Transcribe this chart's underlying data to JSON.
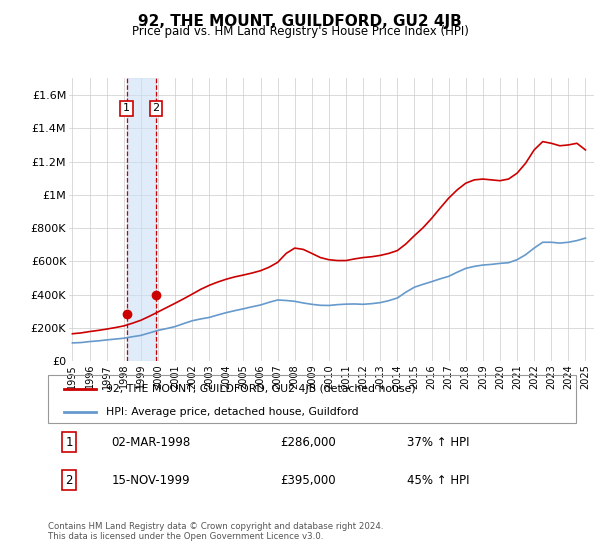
{
  "title": "92, THE MOUNT, GUILDFORD, GU2 4JB",
  "subtitle": "Price paid vs. HM Land Registry's House Price Index (HPI)",
  "legend_line1": "92, THE MOUNT, GUILDFORD, GU2 4JB (detached house)",
  "legend_line2": "HPI: Average price, detached house, Guildford",
  "transaction1_date": "02-MAR-1998",
  "transaction1_price": "£286,000",
  "transaction1_hpi": "37% ↑ HPI",
  "transaction2_date": "15-NOV-1999",
  "transaction2_price": "£395,000",
  "transaction2_hpi": "45% ↑ HPI",
  "footer": "Contains HM Land Registry data © Crown copyright and database right 2024.\nThis data is licensed under the Open Government Licence v3.0.",
  "line_color_red": "#cc0000",
  "line_color_blue": "#6699cc",
  "transaction_color": "#cc0000",
  "shade_color": "#cce0f5",
  "ylim": [
    0,
    1700000
  ],
  "yticks": [
    0,
    200000,
    400000,
    600000,
    800000,
    1000000,
    1200000,
    1400000,
    1600000
  ],
  "ytick_labels": [
    "£0",
    "£200K",
    "£400K",
    "£600K",
    "£800K",
    "£1M",
    "£1.2M",
    "£1.4M",
    "£1.6M"
  ],
  "hpi_years": [
    1995,
    1995.5,
    1996,
    1996.5,
    1997,
    1997.5,
    1998,
    1998.5,
    1999,
    1999.5,
    2000,
    2000.5,
    2001,
    2001.5,
    2002,
    2002.5,
    2003,
    2003.5,
    2004,
    2004.5,
    2005,
    2005.5,
    2006,
    2006.5,
    2007,
    2007.5,
    2008,
    2008.5,
    2009,
    2009.5,
    2010,
    2010.5,
    2011,
    2011.5,
    2012,
    2012.5,
    2013,
    2013.5,
    2014,
    2014.5,
    2015,
    2015.5,
    2016,
    2016.5,
    2017,
    2017.5,
    2018,
    2018.5,
    2019,
    2019.5,
    2020,
    2020.5,
    2021,
    2021.5,
    2022,
    2022.5,
    2023,
    2023.5,
    2024,
    2024.5,
    2025
  ],
  "hpi_values": [
    110000,
    112000,
    118000,
    122000,
    128000,
    133000,
    138000,
    147000,
    155000,
    170000,
    185000,
    196000,
    208000,
    226000,
    243000,
    254000,
    263000,
    278000,
    292000,
    304000,
    315000,
    327000,
    338000,
    354000,
    368000,
    365000,
    360000,
    350000,
    342000,
    336000,
    335000,
    340000,
    343000,
    344000,
    342000,
    346000,
    352000,
    364000,
    380000,
    415000,
    445000,
    462000,
    478000,
    495000,
    510000,
    535000,
    558000,
    570000,
    578000,
    582000,
    588000,
    592000,
    610000,
    640000,
    680000,
    715000,
    715000,
    710000,
    715000,
    725000,
    740000
  ],
  "price_years": [
    1995,
    1995.5,
    1996,
    1996.5,
    1997,
    1997.5,
    1998,
    1998.5,
    1999,
    1999.5,
    2000,
    2000.5,
    2001,
    2001.5,
    2002,
    2002.5,
    2003,
    2003.5,
    2004,
    2004.5,
    2005,
    2005.5,
    2006,
    2006.5,
    2007,
    2007.5,
    2008,
    2008.5,
    2009,
    2009.5,
    2010,
    2010.5,
    2011,
    2011.5,
    2012,
    2012.5,
    2013,
    2013.5,
    2014,
    2014.5,
    2015,
    2015.5,
    2016,
    2016.5,
    2017,
    2017.5,
    2018,
    2018.5,
    2019,
    2019.5,
    2020,
    2020.5,
    2021,
    2021.5,
    2022,
    2022.5,
    2023,
    2023.5,
    2024,
    2024.5,
    2025
  ],
  "price_values": [
    165000,
    170000,
    178000,
    185000,
    193000,
    202000,
    212000,
    228000,
    246000,
    270000,
    296000,
    322000,
    348000,
    375000,
    403000,
    432000,
    456000,
    476000,
    493000,
    507000,
    518000,
    530000,
    544000,
    565000,
    594000,
    648000,
    680000,
    672000,
    648000,
    623000,
    610000,
    605000,
    605000,
    615000,
    623000,
    628000,
    636000,
    648000,
    665000,
    705000,
    755000,
    802000,
    858000,
    920000,
    980000,
    1030000,
    1070000,
    1090000,
    1095000,
    1090000,
    1085000,
    1095000,
    1130000,
    1190000,
    1270000,
    1320000,
    1310000,
    1295000,
    1300000,
    1310000,
    1270000
  ],
  "transaction_x1": 1998.17,
  "transaction_y1": 286000,
  "transaction_x2": 1999.88,
  "transaction_y2": 395000,
  "xtick_years": [
    1995,
    1996,
    1997,
    1998,
    1999,
    2000,
    2001,
    2002,
    2003,
    2004,
    2005,
    2006,
    2007,
    2008,
    2009,
    2010,
    2011,
    2012,
    2013,
    2014,
    2015,
    2016,
    2017,
    2018,
    2019,
    2020,
    2021,
    2022,
    2023,
    2024,
    2025
  ]
}
